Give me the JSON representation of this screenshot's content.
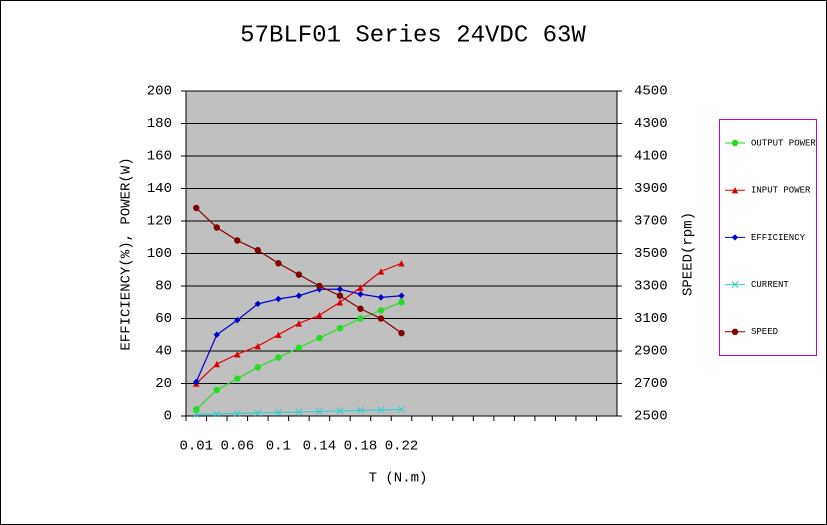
{
  "chart_data": {
    "type": "line",
    "title": "57BLF01 Series 24VDC 63W",
    "x_label": "T (N.m)",
    "y_label": "EFFICIENCY(%), POWER(W)",
    "y2_label": "SPEED(rpm)",
    "categories": [
      "0.01",
      null,
      "0.06",
      null,
      "0.1",
      null,
      "0.14",
      null,
      "0.18",
      null,
      "0.22",
      null,
      null,
      null,
      null,
      null,
      null,
      null,
      null,
      null,
      null
    ],
    "ylim": [
      0,
      200
    ],
    "yticks": [
      0,
      20,
      40,
      60,
      80,
      100,
      120,
      140,
      160,
      180,
      200
    ],
    "y2lim": [
      2500,
      4500
    ],
    "y2ticks": [
      2500,
      2700,
      2900,
      3100,
      3300,
      3500,
      3700,
      3900,
      4100,
      4300,
      4500
    ],
    "grid": true,
    "series": [
      {
        "name": "OUTPUT POWER",
        "color": "#22dd22",
        "marker": "circle",
        "values": [
          4,
          16,
          23,
          30,
          36,
          42,
          48,
          54,
          60,
          65,
          70,
          null,
          null,
          null,
          null,
          null,
          null,
          null,
          null,
          null,
          null
        ]
      },
      {
        "name": "INPUT POWER",
        "color": "#dd0000",
        "marker": "triangle",
        "values": [
          20,
          32,
          38,
          43,
          50,
          57,
          62,
          70,
          79,
          89,
          94,
          null,
          null,
          null,
          null,
          null,
          null,
          null,
          null,
          null,
          null
        ]
      },
      {
        "name": "EFFICIENCY",
        "color": "#0000cc",
        "marker": "diamond",
        "values": [
          21,
          50,
          59,
          69,
          72,
          74,
          78,
          78,
          75,
          73,
          74,
          null,
          null,
          null,
          null,
          null,
          null,
          null,
          null,
          null,
          null
        ]
      },
      {
        "name": "CURRENT",
        "color": "#33cccc",
        "marker": "x",
        "values": [
          1,
          1.3,
          1.6,
          1.9,
          2.2,
          2.5,
          2.8,
          3.1,
          3.4,
          3.7,
          4,
          null,
          null,
          null,
          null,
          null,
          null,
          null,
          null,
          null,
          null
        ]
      },
      {
        "name": "SPEED",
        "color": "#800000",
        "marker": "circle",
        "axis": "y2",
        "values": [
          3780,
          3660,
          3580,
          3520,
          3440,
          3370,
          3300,
          3240,
          3160,
          3100,
          3010,
          null,
          null,
          null,
          null,
          null,
          null,
          null,
          null,
          null,
          null
        ]
      }
    ]
  }
}
